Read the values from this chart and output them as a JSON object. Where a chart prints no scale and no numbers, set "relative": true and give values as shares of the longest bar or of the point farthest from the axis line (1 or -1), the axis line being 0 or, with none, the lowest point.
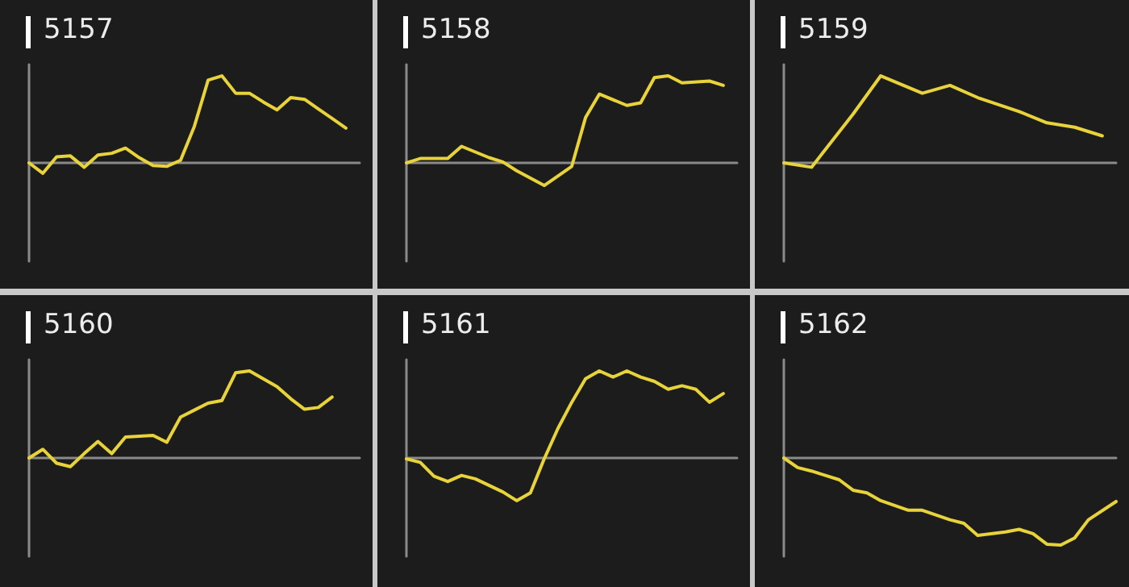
{
  "chart_data": [
    {
      "type": "line",
      "title": "5157",
      "relative": true,
      "color": "#e8d33a",
      "categories": [
        null,
        null,
        null,
        null,
        null,
        null,
        null,
        null,
        null,
        null,
        null,
        null,
        null,
        null,
        null,
        null,
        null,
        null,
        null,
        null,
        null,
        null,
        null,
        null,
        null
      ],
      "values": [
        0,
        -0.12,
        0.07,
        0.08,
        -0.05,
        0.09,
        0.11,
        0.17,
        0.06,
        -0.03,
        -0.04,
        0.03,
        0.42,
        0.95,
        1,
        0.8,
        0.8,
        0.7,
        0.61,
        0.75,
        0.73,
        0.62,
        0.51,
        0.4,
        null
      ]
    },
    {
      "type": "line",
      "title": "5158",
      "relative": true,
      "color": "#e8d33a",
      "categories": [
        null,
        null,
        null,
        null,
        null,
        null,
        null,
        null,
        null,
        null,
        null,
        null,
        null,
        null,
        null,
        null,
        null,
        null,
        null,
        null,
        null,
        null,
        null,
        null,
        null
      ],
      "values": [
        0,
        0.05,
        null,
        0.05,
        0.19,
        null,
        0.06,
        0.01,
        -0.09,
        null,
        -0.26,
        null,
        -0.04,
        0.52,
        0.79,
        null,
        0.66,
        0.69,
        0.98,
        1,
        0.92,
        null,
        0.94,
        0.89,
        null
      ]
    },
    {
      "type": "line",
      "title": "5159",
      "relative": true,
      "color": "#e8d33a",
      "categories": [
        null,
        null,
        null,
        null,
        null,
        null,
        null,
        null,
        null,
        null,
        null,
        null,
        null,
        null,
        null,
        null,
        null,
        null,
        null,
        null,
        null,
        null,
        null,
        null,
        null
      ],
      "values": [
        0,
        null,
        -0.05,
        null,
        null,
        0.56,
        null,
        1,
        null,
        null,
        0.8,
        null,
        0.89,
        null,
        0.75,
        null,
        null,
        0.59,
        null,
        0.46,
        null,
        0.41,
        null,
        0.31,
        null
      ]
    },
    {
      "type": "line",
      "title": "5160",
      "relative": true,
      "color": "#e8d33a",
      "categories": [
        null,
        null,
        null,
        null,
        null,
        null,
        null,
        null,
        null,
        null,
        null,
        null,
        null,
        null,
        null,
        null,
        null,
        null,
        null,
        null,
        null,
        null,
        null,
        null,
        null
      ],
      "values": [
        0,
        0.1,
        -0.06,
        -0.1,
        0.05,
        0.19,
        0.05,
        0.24,
        null,
        0.26,
        0.18,
        0.47,
        0.55,
        0.63,
        0.66,
        0.98,
        1,
        null,
        0.82,
        0.68,
        0.56,
        0.58,
        0.7,
        null,
        null
      ]
    },
    {
      "type": "line",
      "title": "5161",
      "relative": true,
      "color": "#e8d33a",
      "categories": [
        null,
        null,
        null,
        null,
        null,
        null,
        null,
        null,
        null,
        null,
        null,
        null,
        null,
        null,
        null,
        null,
        null,
        null,
        null,
        null,
        null,
        null,
        null,
        null,
        null
      ],
      "values": [
        -0.01,
        -0.05,
        -0.21,
        -0.27,
        -0.2,
        -0.24,
        null,
        -0.39,
        -0.49,
        -0.4,
        -0.01,
        0.34,
        0.64,
        0.91,
        1,
        0.93,
        1,
        0.93,
        0.88,
        0.79,
        0.83,
        0.79,
        0.64,
        0.74,
        null
      ]
    },
    {
      "type": "line",
      "title": "5162",
      "relative": true,
      "color": "#e8d33a",
      "categories": [
        null,
        null,
        null,
        null,
        null,
        null,
        null,
        null,
        null,
        null,
        null,
        null,
        null,
        null,
        null,
        null,
        null,
        null,
        null,
        null,
        null,
        null,
        null,
        null,
        null
      ],
      "values": [
        0,
        -0.11,
        -0.15,
        null,
        -0.25,
        -0.37,
        -0.4,
        -0.49,
        null,
        -0.6,
        -0.6,
        null,
        -0.71,
        -0.75,
        -0.89,
        null,
        -0.85,
        -0.82,
        -0.87,
        -0.99,
        -1,
        -0.92,
        -0.71,
        null,
        -0.5
      ]
    }
  ]
}
